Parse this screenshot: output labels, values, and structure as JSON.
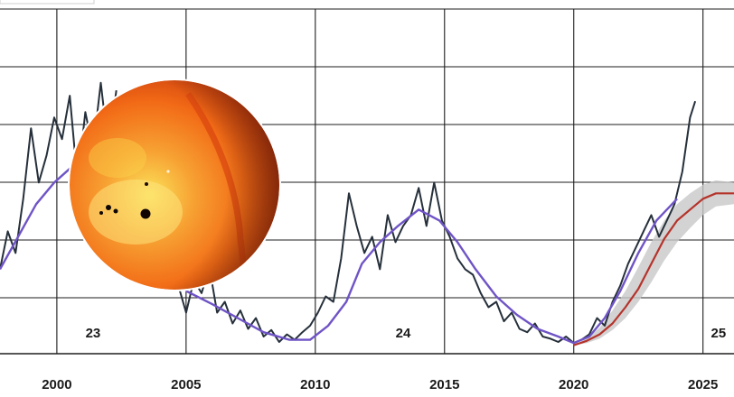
{
  "chart_data": {
    "type": "line",
    "title": "",
    "xlabel": "",
    "ylabel": "",
    "xlim": [
      1997.8,
      2026.2
    ],
    "ylim": [
      -12,
      310
    ],
    "grid": true,
    "x_ticks": [
      "2000",
      "2005",
      "2010",
      "2015",
      "2020",
      "2025"
    ],
    "cycle_labels": [
      {
        "text": "23",
        "x": 2001.4
      },
      {
        "text": "24",
        "x": 2013.4
      },
      {
        "text": "25",
        "x": 2025.6
      }
    ],
    "series": [
      {
        "color": "#26303b",
        "style": "monthly",
        "x": [
          1997.8,
          1998.1,
          1998.4,
          1998.7,
          1999.0,
          1999.3,
          1999.6,
          1999.9,
          2000.2,
          2000.5,
          2000.8,
          2001.1,
          2001.4,
          2001.7,
          2002.0,
          2002.3,
          2004.7,
          2005.0,
          2005.3,
          2005.6,
          2005.9,
          2006.2,
          2006.5,
          2006.8,
          2007.1,
          2007.4,
          2007.7,
          2008.0,
          2008.3,
          2008.6,
          2008.9,
          2009.2,
          2009.5,
          2009.8,
          2010.1,
          2010.4,
          2010.7,
          2011.0,
          2011.3,
          2011.6,
          2011.9,
          2012.2,
          2012.5,
          2012.8,
          2013.1,
          2013.4,
          2013.7,
          2014.0,
          2014.3,
          2014.6,
          2014.9,
          2015.2,
          2015.5,
          2015.8,
          2016.1,
          2016.4,
          2016.7,
          2017.0,
          2017.3,
          2017.6,
          2017.9,
          2018.2,
          2018.5,
          2018.8,
          2019.1,
          2019.4,
          2019.7,
          2020.0,
          2020.3,
          2020.6,
          2020.9,
          2021.2,
          2021.5,
          2021.8,
          2022.1,
          2022.4,
          2022.7,
          2023.0,
          2023.3,
          2023.6,
          2023.9,
          2024.2,
          2024.5,
          2024.7
        ],
        "y": [
          70,
          105,
          85,
          135,
          200,
          150,
          175,
          210,
          190,
          230,
          150,
          215,
          180,
          242,
          180,
          235,
          55,
          30,
          60,
          48,
          72,
          30,
          40,
          20,
          32,
          15,
          25,
          8,
          14,
          3,
          10,
          5,
          12,
          18,
          30,
          45,
          40,
          80,
          140,
          110,
          85,
          100,
          70,
          120,
          95,
          110,
          120,
          145,
          110,
          150,
          115,
          100,
          80,
          70,
          65,
          48,
          35,
          40,
          22,
          30,
          15,
          12,
          20,
          8,
          6,
          3,
          8,
          2,
          5,
          10,
          25,
          18,
          40,
          55,
          75,
          90,
          105,
          120,
          100,
          115,
          130,
          160,
          210,
          225
        ],
        "render_breaks": [
          [
            2002.3,
            2004.7
          ]
        ]
      },
      {
        "color": "#6f54c6",
        "style": "smoothed",
        "x": [
          1997.8,
          1998.5,
          1999.2,
          1999.9,
          2000.6,
          2001.3,
          2001.8,
          2002.2,
          2005.0,
          2006.0,
          2007.0,
          2008.0,
          2009.0,
          2009.8,
          2010.5,
          2011.2,
          2011.8,
          2012.5,
          2013.2,
          2014.0,
          2014.8,
          2015.5,
          2016.2,
          2017.0,
          2017.8,
          2018.6,
          2019.4,
          2020.0,
          2020.6,
          2021.2,
          2021.8,
          2022.5,
          2023.2,
          2024.0
        ],
        "y": [
          70,
          100,
          130,
          150,
          165,
          180,
          185,
          188,
          50,
          38,
          25,
          12,
          5,
          5,
          18,
          40,
          75,
          95,
          110,
          125,
          115,
          95,
          70,
          45,
          28,
          15,
          8,
          2,
          8,
          25,
          50,
          85,
          115,
          135
        ],
        "render_breaks": [
          [
            2002.2,
            2005.0
          ]
        ]
      },
      {
        "color": "#d08c8c",
        "style": "prediction-band",
        "x": [
          2020.0,
          2020.5,
          2021.0,
          2021.5,
          2022.0,
          2022.5,
          2023.0,
          2023.5,
          2024.0,
          2024.5,
          2025.0,
          2025.5,
          2026.2
        ],
        "y_low": [
          0,
          2,
          6,
          14,
          25,
          40,
          58,
          78,
          95,
          108,
          120,
          128,
          130
        ],
        "y_high": [
          0,
          6,
          16,
          32,
          50,
          72,
          95,
          115,
          130,
          140,
          148,
          152,
          150
        ]
      },
      {
        "color": "#b5332b",
        "style": "prediction",
        "x": [
          2020.0,
          2020.5,
          2021.0,
          2021.5,
          2022.0,
          2022.5,
          2023.0,
          2023.5,
          2024.0,
          2024.5,
          2025.0,
          2025.5,
          2026.2
        ],
        "y": [
          0,
          4,
          10,
          20,
          35,
          52,
          75,
          98,
          115,
          125,
          135,
          140,
          140
        ]
      }
    ]
  },
  "inset_image": {
    "subject": "sun-photo",
    "colors": {
      "core": "#fbe35a",
      "mid": "#f26a16",
      "edge": "#b2230a"
    }
  }
}
